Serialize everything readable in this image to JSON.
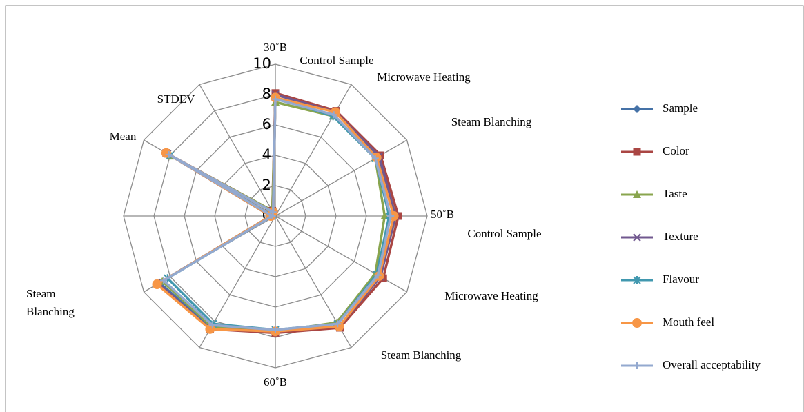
{
  "chart_data": {
    "type": "radar",
    "categories": [
      [
        "30˚B",
        "Control Sample"
      ],
      [
        "Microwave Heating"
      ],
      [
        "Steam Blanching"
      ],
      [
        "50˚B",
        "Control Sample"
      ],
      [
        "Microwave Heating"
      ],
      [
        "Steam Blanching"
      ],
      [
        "60˚B"
      ],
      null,
      [
        "Steam",
        "Blanching"
      ],
      null,
      [
        "Mean"
      ],
      [
        "STDEV"
      ]
    ],
    "ylim": [
      0,
      10
    ],
    "yticks": [
      0,
      2,
      4,
      6,
      8,
      10
    ],
    "grid": true,
    "series": [
      {
        "name": "Sample",
        "color": "#4572A7",
        "marker": "diamond",
        "values": [
          8,
          7.9,
          7.8,
          7.9,
          8,
          8.4,
          7.6,
          8.5,
          8.8,
          0.3,
          8.2,
          0.3
        ]
      },
      {
        "name": "Color",
        "color": "#AA4643",
        "marker": "square",
        "values": [
          8.1,
          8,
          8,
          8.1,
          8.2,
          8.5,
          7.7,
          8.6,
          8.9,
          0.3,
          8.3,
          0.4
        ]
      },
      {
        "name": "Taste",
        "color": "#89A54E",
        "marker": "triangle",
        "values": [
          7.5,
          7.6,
          7.6,
          7.2,
          7.6,
          8.1,
          7.6,
          8.4,
          8.6,
          0.3,
          7.9,
          0.4
        ]
      },
      {
        "name": "Texture",
        "color": "#71588F",
        "marker": "x",
        "values": [
          8,
          7.9,
          7.9,
          7.9,
          8,
          8.4,
          7.6,
          8.6,
          8.9,
          0.3,
          8.2,
          0.3
        ]
      },
      {
        "name": "Flavour",
        "color": "#4198AF",
        "marker": "star",
        "values": [
          7.8,
          7.6,
          7.6,
          7.5,
          7.7,
          8.2,
          7.5,
          8.2,
          8.2,
          0.2,
          8,
          0.3
        ]
      },
      {
        "name": "Mouth feel",
        "color": "#F79646",
        "marker": "circle",
        "values": [
          7.8,
          7.9,
          7.7,
          7.8,
          7.9,
          8.4,
          7.6,
          8.6,
          9,
          0.3,
          8.3,
          0.3
        ]
      },
      {
        "name": "Overall acceptability",
        "color": "#93A9CF",
        "marker": "plus",
        "values": [
          7.7,
          7.7,
          7.6,
          7.6,
          7.8,
          8.2,
          7.5,
          8.3,
          8.5,
          0.2,
          8.1,
          0.3
        ]
      }
    ]
  }
}
